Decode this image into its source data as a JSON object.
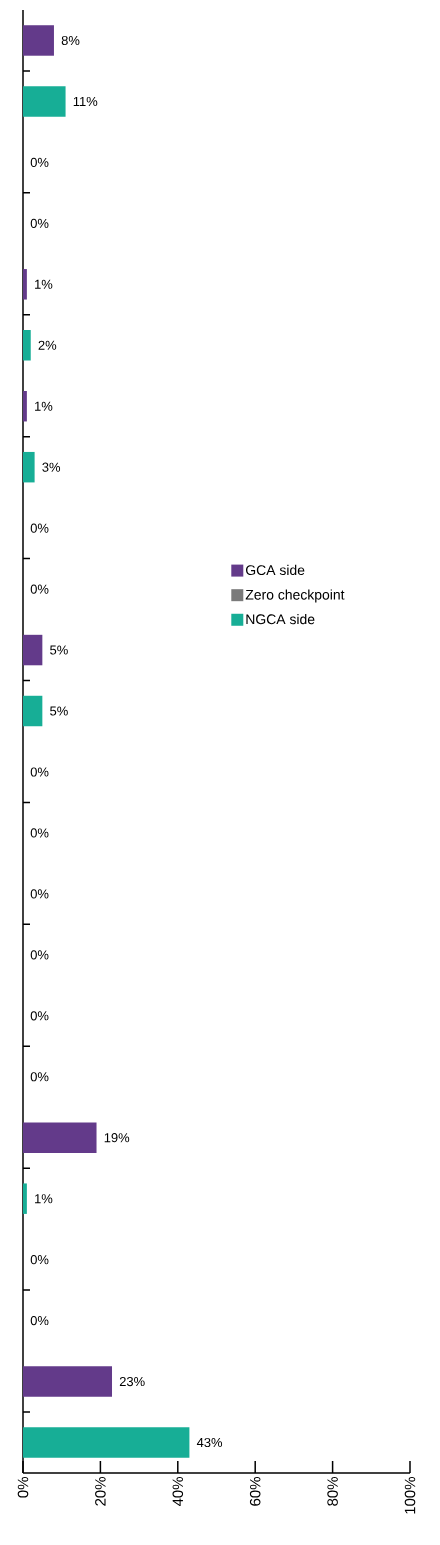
{
  "chart_data": {
    "type": "bar",
    "orientation": "horizontal",
    "categories": [
      null,
      null,
      null,
      null,
      null,
      null,
      null,
      null,
      null,
      null,
      null,
      null,
      null,
      null,
      null,
      null,
      null,
      null,
      null,
      null,
      null,
      null,
      null,
      null
    ],
    "series": [
      {
        "name": "GCA side",
        "color": "#633a8a",
        "values": [
          8,
          null,
          0,
          null,
          1,
          null,
          1,
          null,
          0,
          null,
          5,
          null,
          0,
          null,
          0,
          null,
          0,
          null,
          19,
          null,
          0,
          null,
          23,
          null
        ],
        "value_labels": [
          "8%",
          null,
          "0%",
          null,
          "1%",
          null,
          "1%",
          null,
          "0%",
          null,
          "5%",
          null,
          "0%",
          null,
          "0%",
          null,
          "0%",
          null,
          "19%",
          null,
          "0%",
          null,
          "23%",
          null
        ]
      },
      {
        "name": "Zero checkpoint",
        "color": "#7a7a7a",
        "values": [
          null,
          null,
          null,
          null,
          null,
          null,
          null,
          null,
          null,
          null,
          null,
          null,
          null,
          null,
          null,
          null,
          null,
          null,
          null,
          null,
          null,
          null,
          null,
          null
        ]
      },
      {
        "name": "NGCA side",
        "color": "#17ae96",
        "values": [
          null,
          11,
          null,
          0,
          null,
          2,
          null,
          3,
          null,
          0,
          null,
          5,
          null,
          0,
          null,
          0,
          null,
          0,
          null,
          1,
          null,
          0,
          null,
          43
        ],
        "value_labels": [
          null,
          "11%",
          null,
          "0%",
          null,
          "2%",
          null,
          "3%",
          null,
          "0%",
          null,
          "5%",
          null,
          "0%",
          null,
          "0%",
          null,
          "0%",
          null,
          "1%",
          null,
          "0%",
          null,
          "43%"
        ]
      }
    ],
    "xlim": [
      0,
      100
    ],
    "xticks": [
      {
        "value": 0,
        "label": "0%"
      },
      {
        "value": 20,
        "label": "20%"
      },
      {
        "value": 40,
        "label": "40%"
      },
      {
        "value": 60,
        "label": "60%"
      },
      {
        "value": 80,
        "label": "80%"
      },
      {
        "value": 100,
        "label": "100%"
      }
    ],
    "grid": false,
    "legend": "right"
  }
}
